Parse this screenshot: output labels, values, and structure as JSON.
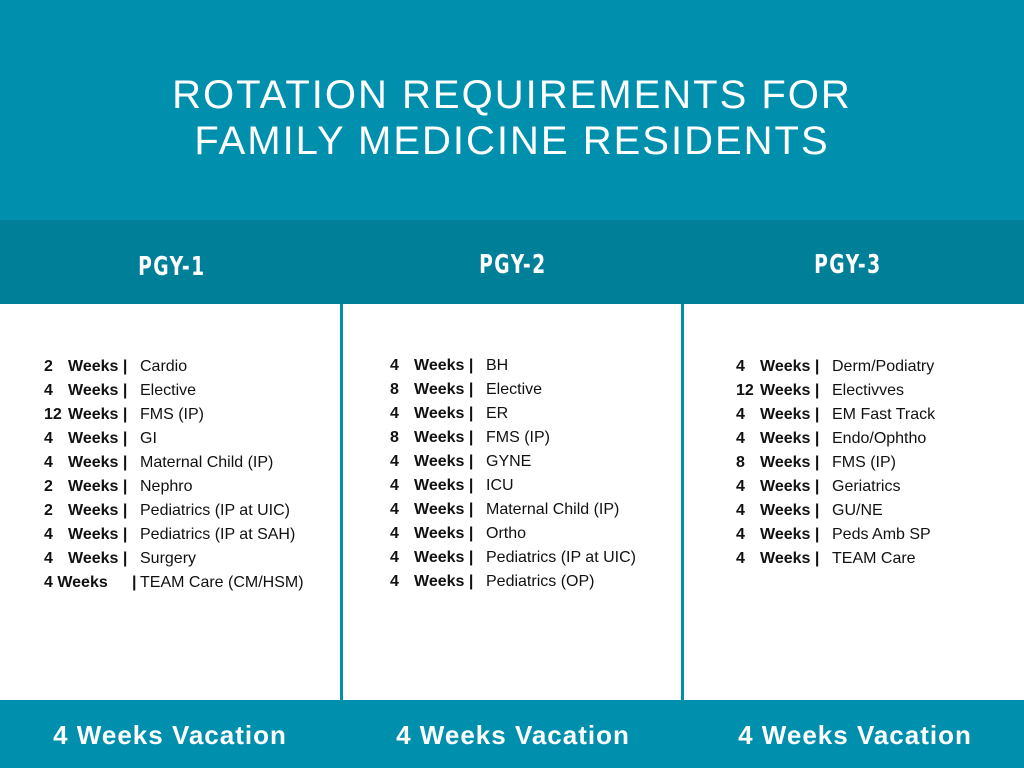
{
  "title_lines": [
    "ROTATION REQUIREMENTS FOR",
    "FAMILY MEDICINE RESIDENTS"
  ],
  "columns": [
    {
      "heading": "PGY-1",
      "vacation": "4 Weeks Vacation",
      "rows": [
        {
          "num": "2",
          "weeks": "Weeks |",
          "label": "Cardio"
        },
        {
          "num": "4",
          "weeks": "Weeks |",
          "label": "Elective"
        },
        {
          "num": "12",
          "weeks": "Weeks |",
          "label": "FMS (IP)"
        },
        {
          "num": "4",
          "weeks": "Weeks |",
          "label": "GI"
        },
        {
          "num": "4",
          "weeks": "Weeks |",
          "label": "Maternal Child (IP)"
        },
        {
          "num": "2",
          "weeks": "Weeks |",
          "label": "Nephro"
        },
        {
          "num": "2",
          "weeks": "Weeks |",
          "label": "Pediatrics (IP at UIC)"
        },
        {
          "num": "4",
          "weeks": "Weeks |",
          "label": "Pediatrics (IP at SAH)"
        },
        {
          "num": "4",
          "weeks": "Weeks |",
          "label": "Surgery"
        },
        {
          "num": "4 Weeks",
          "weeks": "|",
          "label": "TEAM Care (CM/HSM)"
        }
      ]
    },
    {
      "heading": "PGY-2",
      "vacation": "4 Weeks Vacation",
      "rows": [
        {
          "num": "4",
          "weeks": "Weeks |",
          "label": "BH"
        },
        {
          "num": "8",
          "weeks": "Weeks |",
          "label": "Elective"
        },
        {
          "num": "4",
          "weeks": "Weeks |",
          "label": "ER"
        },
        {
          "num": "8",
          "weeks": "Weeks |",
          "label": "FMS (IP)"
        },
        {
          "num": "4",
          "weeks": "Weeks |",
          "label": "GYNE"
        },
        {
          "num": "4",
          "weeks": "Weeks |",
          "label": "ICU"
        },
        {
          "num": "4",
          "weeks": "Weeks |",
          "label": "Maternal Child  (IP)"
        },
        {
          "num": "4",
          "weeks": "Weeks |",
          "label": "Ortho"
        },
        {
          "num": "4",
          "weeks": "Weeks |",
          "label": "Pediatrics (IP at UIC)"
        },
        {
          "num": "4",
          "weeks": "Weeks |",
          "label": "Pediatrics (OP)"
        }
      ]
    },
    {
      "heading": "PGY-3",
      "vacation": "4 Weeks Vacation",
      "rows": [
        {
          "num": "4",
          "weeks": "Weeks |",
          "label": "Derm/Podiatry"
        },
        {
          "num": "12",
          "weeks": "Weeks |",
          "label": "Electivves"
        },
        {
          "num": "4",
          "weeks": "Weeks |",
          "label": "EM Fast Track"
        },
        {
          "num": "4",
          "weeks": "Weeks |",
          "label": "Endo/Ophtho"
        },
        {
          "num": "8",
          "weeks": "Weeks |",
          "label": "FMS (IP)"
        },
        {
          "num": "4",
          "weeks": "Weeks |",
          "label": "Geriatrics"
        },
        {
          "num": "4",
          "weeks": "Weeks |",
          "label": "GU/NE"
        },
        {
          "num": "4",
          "weeks": "Weeks |",
          "label": "Peds Amb SP"
        },
        {
          "num": "4",
          "weeks": "Weeks |",
          "label": "TEAM Care"
        }
      ]
    }
  ]
}
